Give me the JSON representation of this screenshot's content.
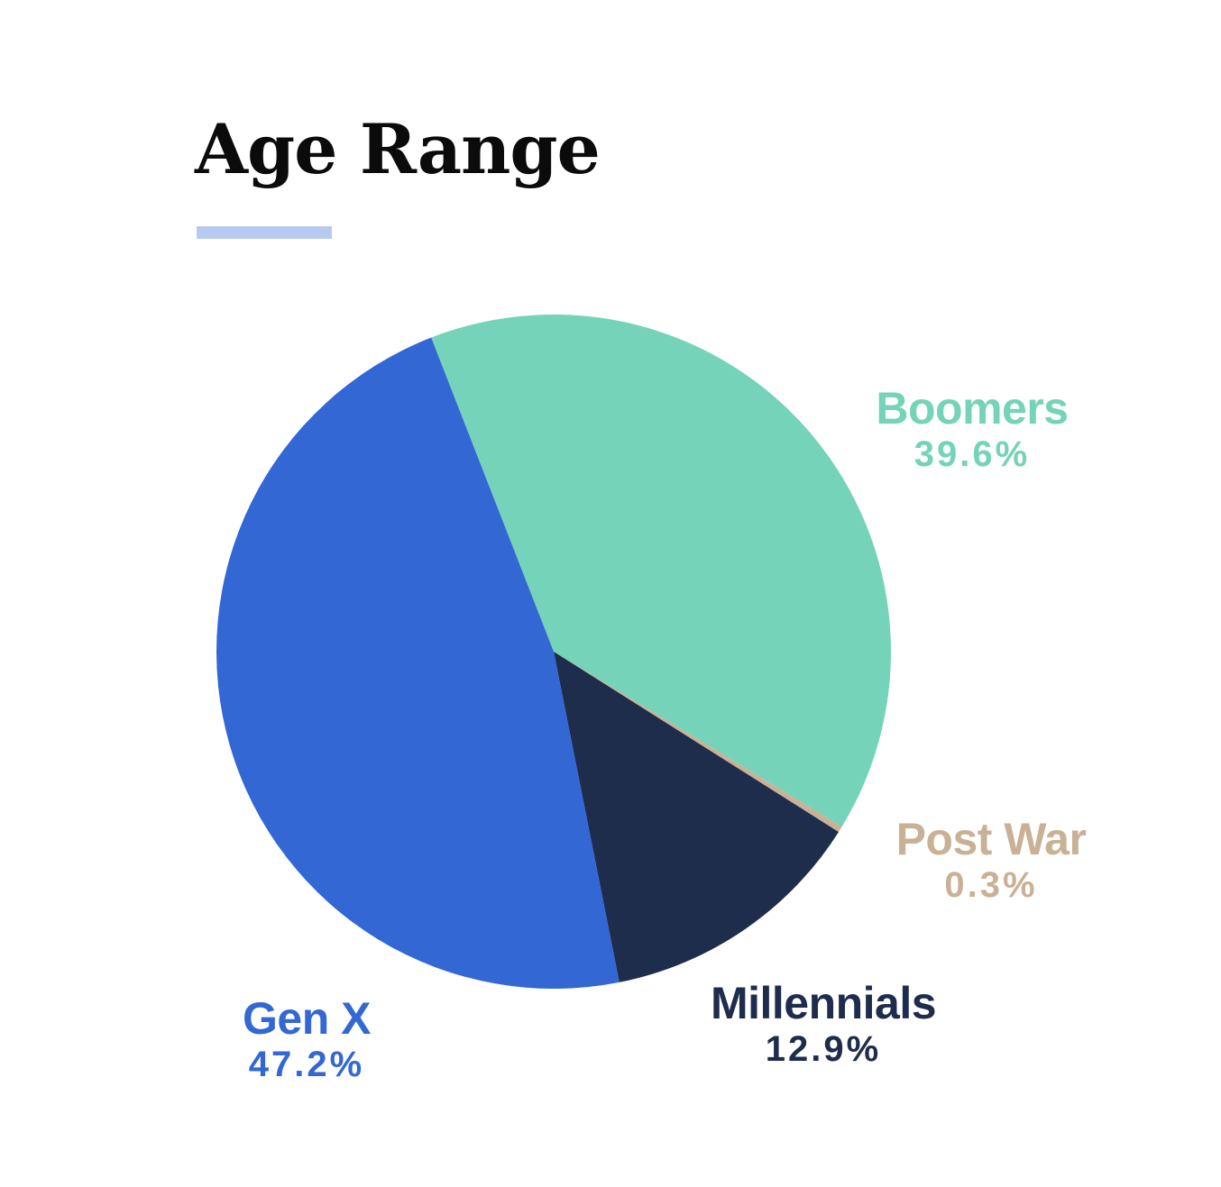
{
  "header": {
    "title": "Age Range"
  },
  "colors": {
    "title": "#0b0b0b",
    "underline": "#b7cbf2",
    "background": "#ffffff"
  },
  "chart_data": {
    "type": "pie",
    "title": "Age Range",
    "start": "top, counterclockwise from Boomers/Gen X boundary",
    "slices": [
      {
        "name": "Boomers",
        "value": 39.6,
        "label": "39.6%",
        "color": "#74d3b8"
      },
      {
        "name": "Post War",
        "value": 0.3,
        "label": "0.3%",
        "color": "#c9b196"
      },
      {
        "name": "Millennials",
        "value": 12.9,
        "label": "12.9%",
        "color": "#1d2d4b"
      },
      {
        "name": "Gen X",
        "value": 47.2,
        "label": "47.2%",
        "color": "#3267d4"
      }
    ]
  }
}
